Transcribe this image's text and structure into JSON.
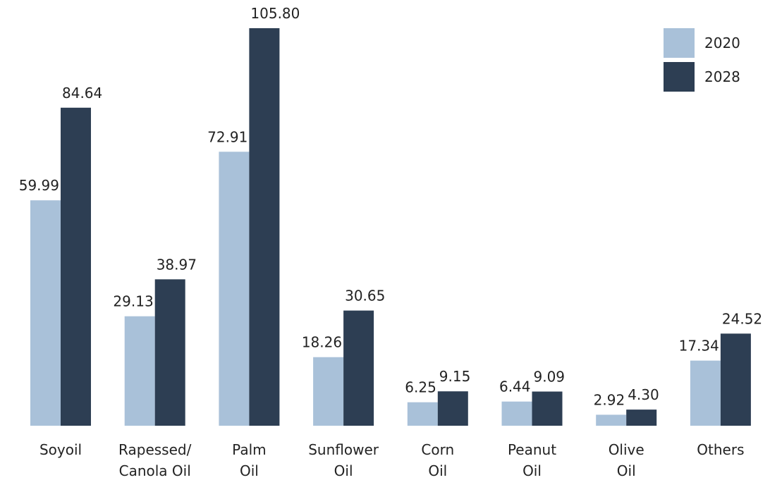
{
  "chart_data": {
    "type": "bar",
    "title": "",
    "xlabel": "",
    "ylabel": "",
    "ylim": [
      0,
      105.8
    ],
    "grid": false,
    "legend_position": "top-right",
    "categories": [
      [
        "Soyoil"
      ],
      [
        "Rapessed/",
        "Canola Oil"
      ],
      [
        "Palm",
        "Oil"
      ],
      [
        "Sunflower",
        "Oil"
      ],
      [
        "Corn",
        "Oil"
      ],
      [
        "Peanut",
        "Oil"
      ],
      [
        "Olive",
        "Oil"
      ],
      [
        "Others"
      ]
    ],
    "series": [
      {
        "name": "2020",
        "color": "#a9c1d9",
        "values": [
          59.99,
          29.13,
          72.91,
          18.26,
          6.25,
          6.44,
          2.92,
          17.34
        ],
        "labels": [
          "59.99",
          "29.13",
          "72.91",
          "18.26",
          "6.25",
          "6.44",
          "2.92",
          "17.34"
        ]
      },
      {
        "name": "2028",
        "color": "#2d3e53",
        "values": [
          84.64,
          38.97,
          105.8,
          30.65,
          9.15,
          9.09,
          4.3,
          24.52
        ],
        "labels": [
          "84.64",
          "38.97",
          "105.80",
          "30.65",
          "9.15",
          "9.09",
          "4.30",
          "24.52"
        ]
      }
    ]
  }
}
